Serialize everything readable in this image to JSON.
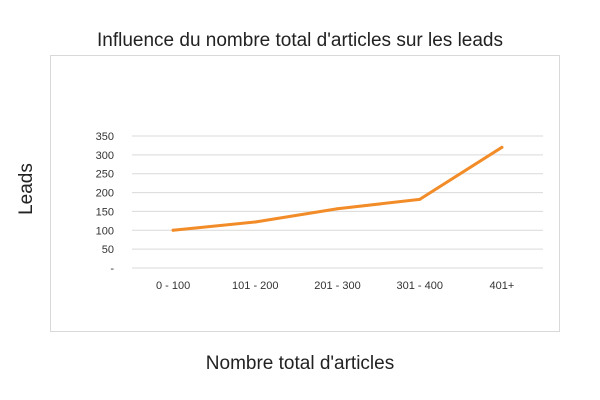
{
  "chart_data": {
    "type": "line",
    "title": "Influence du nombre total d'articles sur les leads",
    "xlabel": "Nombre total d'articles",
    "ylabel": "Leads",
    "categories": [
      "0 - 100",
      "101 - 200",
      "201 - 300",
      "301 - 400",
      "401+"
    ],
    "series": [
      {
        "values": [
          100,
          122,
          157,
          182,
          320
        ],
        "color": "#f28c28"
      }
    ],
    "ylim": [
      0,
      350
    ],
    "yticks": [
      0,
      50,
      100,
      150,
      200,
      250,
      300,
      350
    ],
    "ytick_labels": [
      "-",
      "50",
      "100",
      "150",
      "200",
      "250",
      "300",
      "350"
    ],
    "grid": true,
    "legend": "none"
  }
}
